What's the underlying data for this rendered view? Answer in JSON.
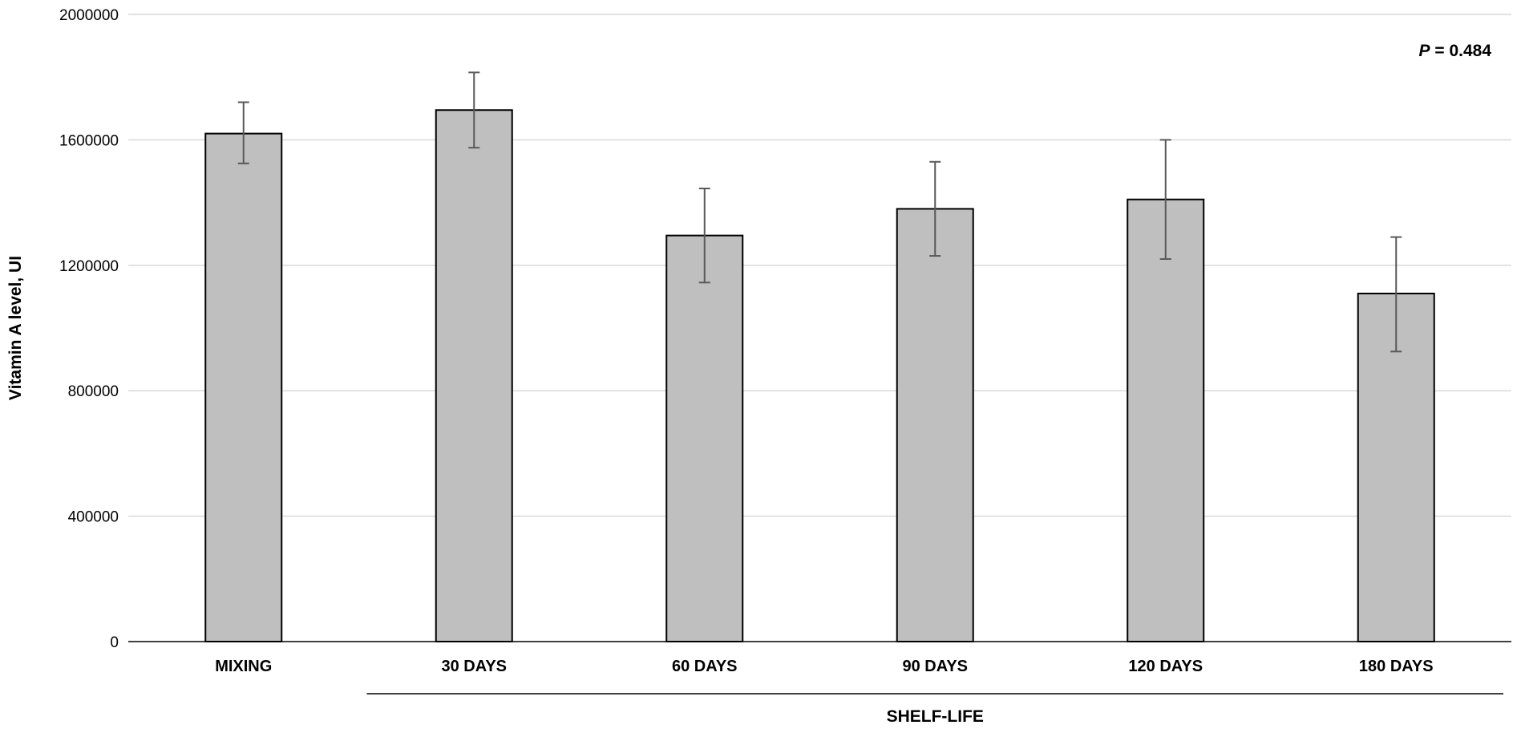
{
  "chart_data": {
    "type": "bar",
    "title": "",
    "xlabel": "",
    "ylabel": "Vitamin A level, UI",
    "ylim": [
      0,
      2000000
    ],
    "yticks": [
      0,
      400000,
      800000,
      1200000,
      1600000,
      2000000
    ],
    "ytick_labels": [
      "0",
      "400000",
      "800000",
      "1200000",
      "1600000",
      "2000000"
    ],
    "categories": [
      "MIXING",
      "30 DAYS",
      "60 DAYS",
      "90 DAYS",
      "120 DAYS",
      "180 DAYS"
    ],
    "values": [
      1620000,
      1695000,
      1295000,
      1380000,
      1410000,
      1110000
    ],
    "error_bars": [
      {
        "low": 1525000,
        "high": 1720000
      },
      {
        "low": 1575000,
        "high": 1815000
      },
      {
        "low": 1145000,
        "high": 1445000
      },
      {
        "low": 1230000,
        "high": 1530000
      },
      {
        "low": 1220000,
        "high": 1600000
      },
      {
        "low": 925000,
        "high": 1290000
      }
    ],
    "group_label": {
      "text": "SHELF-LIFE",
      "categories": [
        "30 DAYS",
        "60 DAYS",
        "90 DAYS",
        "120 DAYS",
        "180 DAYS"
      ]
    },
    "annotation": {
      "prefix": "P",
      "text": " = 0.484",
      "placement": "top-right"
    },
    "grid": true,
    "bar_color": "#bfbfbf",
    "bar_edge_color": "#000000",
    "error_color": "#595959",
    "grid_color": "#d9d9d9"
  }
}
